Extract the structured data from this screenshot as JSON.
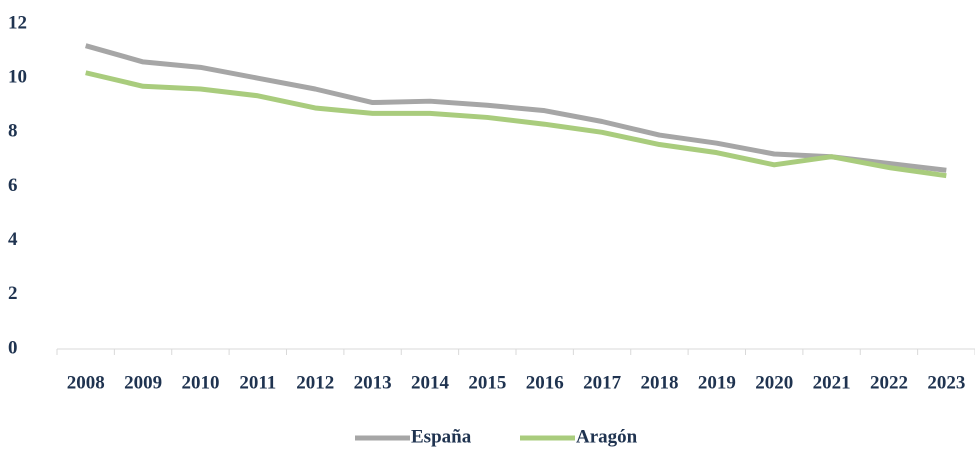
{
  "chart_data": {
    "type": "line",
    "categories": [
      "2008",
      "2009",
      "2010",
      "2011",
      "2012",
      "2013",
      "2014",
      "2015",
      "2016",
      "2017",
      "2018",
      "2019",
      "2020",
      "2021",
      "2022",
      "2023"
    ],
    "series": [
      {
        "name": "España",
        "color": "#a6a6a6",
        "values": [
          11.2,
          10.6,
          10.4,
          10.0,
          9.6,
          9.1,
          9.15,
          9.0,
          8.8,
          8.4,
          7.9,
          7.6,
          7.2,
          7.1,
          6.85,
          6.6
        ]
      },
      {
        "name": "Aragón",
        "color": "#a9cc7d",
        "values": [
          10.2,
          9.7,
          9.6,
          9.35,
          8.9,
          8.7,
          8.7,
          8.55,
          8.3,
          8.0,
          7.55,
          7.25,
          6.8,
          7.1,
          6.7,
          6.4
        ]
      }
    ],
    "ylim": [
      0,
      12
    ],
    "yticks": [
      0,
      2,
      4,
      6,
      8,
      10,
      12
    ],
    "grid": false,
    "legend": "bottom"
  }
}
